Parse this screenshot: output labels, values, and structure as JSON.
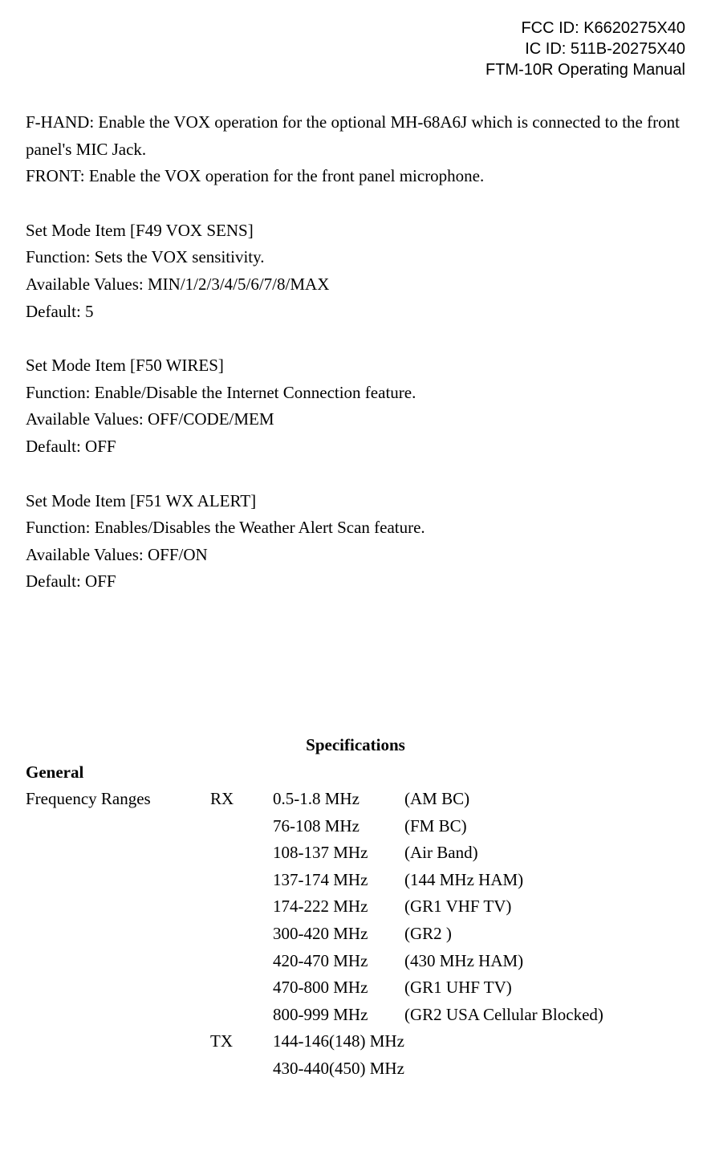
{
  "header": {
    "fcc": "FCC ID: K6620275X40",
    "ic": "IC ID: 511B-20275X40",
    "manual": "FTM-10R Operating Manual"
  },
  "para_fhand": "F-HAND: Enable the VOX operation for the optional MH-68A6J which is connected to the front panel's MIC Jack.",
  "para_front": "FRONT: Enable the VOX operation for the front panel microphone.",
  "items": [
    {
      "title": "Set Mode Item [F49 VOX SENS]",
      "function": "Function: Sets the VOX sensitivity.",
      "values": "Available Values: MIN/1/2/3/4/5/6/7/8/MAX",
      "default": "Default: 5"
    },
    {
      "title": "Set Mode Item [F50 WIRES]",
      "function": "Function: Enable/Disable the Internet Connection feature.",
      "values": "Available Values: OFF/CODE/MEM",
      "default": "Default: OFF"
    },
    {
      "title": "Set Mode Item [F51 WX ALERT]",
      "function": "Function: Enables/Disables the Weather Alert Scan feature.",
      "values": "Available Values: OFF/ON",
      "default": "Default: OFF"
    }
  ],
  "spec_title": "Specifications",
  "spec_section": "General",
  "spec_label": "Frequency Ranges",
  "rx_label": "RX",
  "tx_label": "TX",
  "rx_rows": [
    {
      "freq": "0.5-1.8 MHz",
      "band": "(AM BC)"
    },
    {
      "freq": "76-108 MHz",
      "band": "(FM BC)"
    },
    {
      "freq": "108-137 MHz",
      "band": "(Air Band)"
    },
    {
      "freq": "137-174 MHz",
      "band": "(144 MHz HAM)"
    },
    {
      "freq": "174-222 MHz",
      "band": "(GR1 VHF TV)"
    },
    {
      "freq": "300-420 MHz",
      "band": "(GR2 )"
    },
    {
      "freq": "420-470 MHz",
      "band": "(430 MHz HAM)"
    },
    {
      "freq": "470-800 MHz",
      "band": "(GR1 UHF TV)"
    },
    {
      "freq": "800-999 MHz",
      "band": "(GR2 USA Cellular Blocked)"
    }
  ],
  "tx_rows": [
    {
      "freq": "144-146(148) MHz",
      "band": ""
    },
    {
      "freq": "430-440(450) MHz",
      "band": ""
    }
  ]
}
